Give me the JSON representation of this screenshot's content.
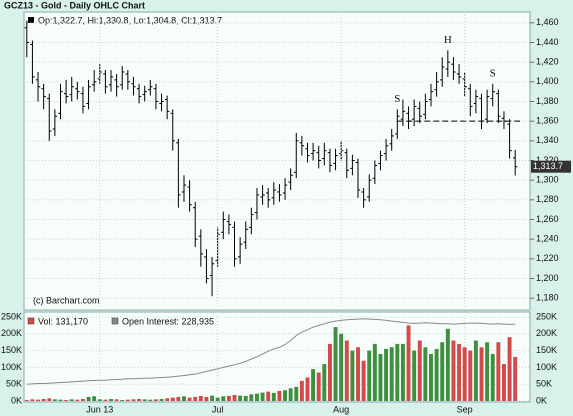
{
  "chart_data": [
    {
      "type": "ohlc",
      "title": "GCZ13 - Gold - Daily OHLC Chart",
      "subtitle": "Op:1,322.7, Hi:1,330.8, Lo:1,304.8, Cl:1,313.7",
      "credit": "(c) Barchart.com",
      "last_label": "1,313.7",
      "color": "#000000",
      "neckline": 1360,
      "annotations": [
        {
          "text": "S"
        },
        {
          "text": "H"
        },
        {
          "text": "S"
        }
      ],
      "open": [
        1455,
        1438,
        1402,
        1393,
        1383,
        1352,
        1368,
        1388,
        1387,
        1393,
        1388,
        1378,
        1397,
        1403,
        1408,
        1397,
        1402,
        1397,
        1408,
        1398,
        1393,
        1387,
        1392,
        1393,
        1378,
        1382,
        1368,
        1338,
        1288,
        1293,
        1272,
        1243,
        1222,
        1203,
        1218,
        1247,
        1258,
        1252,
        1222,
        1237,
        1252,
        1267,
        1283,
        1287,
        1282,
        1288,
        1287,
        1298,
        1308,
        1338,
        1332,
        1327,
        1328,
        1322,
        1328,
        1317,
        1327,
        1328,
        1312,
        1318,
        1288,
        1283,
        1302,
        1317,
        1327,
        1337,
        1347,
        1362,
        1368,
        1362,
        1373,
        1367,
        1382,
        1392,
        1402,
        1413,
        1418,
        1408,
        1403,
        1393,
        1378,
        1383,
        1362,
        1383,
        1388,
        1363,
        1357,
        1322.7
      ],
      "high": [
        1462,
        1442,
        1410,
        1398,
        1388,
        1372,
        1398,
        1402,
        1405,
        1400,
        1395,
        1402,
        1412,
        1418,
        1412,
        1412,
        1408,
        1416,
        1412,
        1405,
        1398,
        1396,
        1402,
        1398,
        1388,
        1386,
        1372,
        1342,
        1305,
        1300,
        1278,
        1250,
        1230,
        1222,
        1252,
        1268,
        1265,
        1258,
        1242,
        1258,
        1272,
        1292,
        1295,
        1292,
        1298,
        1296,
        1302,
        1312,
        1348,
        1345,
        1338,
        1338,
        1335,
        1338,
        1332,
        1332,
        1340,
        1332,
        1326,
        1322,
        1292,
        1306,
        1320,
        1330,
        1342,
        1352,
        1372,
        1382,
        1375,
        1382,
        1380,
        1388,
        1398,
        1410,
        1425,
        1432,
        1425,
        1418,
        1410,
        1398,
        1392,
        1388,
        1392,
        1398,
        1392,
        1370,
        1362,
        1330.8
      ],
      "low": [
        1425,
        1398,
        1380,
        1372,
        1340,
        1345,
        1362,
        1378,
        1380,
        1382,
        1368,
        1372,
        1390,
        1398,
        1388,
        1390,
        1385,
        1392,
        1392,
        1386,
        1378,
        1380,
        1386,
        1372,
        1370,
        1362,
        1330,
        1272,
        1278,
        1268,
        1232,
        1212,
        1195,
        1182,
        1212,
        1240,
        1245,
        1212,
        1215,
        1230,
        1245,
        1260,
        1275,
        1272,
        1275,
        1278,
        1280,
        1290,
        1302,
        1325,
        1318,
        1320,
        1312,
        1315,
        1308,
        1310,
        1320,
        1302,
        1305,
        1282,
        1272,
        1278,
        1296,
        1310,
        1320,
        1330,
        1342,
        1355,
        1352,
        1355,
        1358,
        1362,
        1375,
        1385,
        1395,
        1405,
        1402,
        1398,
        1385,
        1365,
        1368,
        1352,
        1358,
        1375,
        1358,
        1352,
        1322,
        1304.8
      ],
      "close": [
        1440,
        1405,
        1395,
        1385,
        1350,
        1365,
        1390,
        1385,
        1395,
        1390,
        1375,
        1395,
        1400,
        1410,
        1395,
        1405,
        1395,
        1410,
        1400,
        1395,
        1385,
        1390,
        1395,
        1380,
        1380,
        1370,
        1340,
        1285,
        1295,
        1275,
        1240,
        1225,
        1200,
        1215,
        1245,
        1260,
        1255,
        1220,
        1235,
        1250,
        1265,
        1285,
        1285,
        1280,
        1290,
        1285,
        1295,
        1305,
        1340,
        1335,
        1325,
        1330,
        1320,
        1330,
        1315,
        1325,
        1330,
        1310,
        1320,
        1290,
        1280,
        1300,
        1315,
        1325,
        1335,
        1345,
        1365,
        1370,
        1360,
        1375,
        1365,
        1380,
        1390,
        1400,
        1415,
        1420,
        1410,
        1405,
        1395,
        1375,
        1385,
        1360,
        1385,
        1390,
        1365,
        1360,
        1330,
        1313.7
      ],
      "ylim": [
        1170,
        1470
      ],
      "yticks": [
        {
          "value": 1180,
          "label": "1,180"
        },
        {
          "value": 1200,
          "label": "1,200"
        },
        {
          "value": 1220,
          "label": "1,220"
        },
        {
          "value": 1240,
          "label": "1,240"
        },
        {
          "value": 1260,
          "label": "1,260"
        },
        {
          "value": 1280,
          "label": "1,280"
        },
        {
          "value": 1300,
          "label": "1,300"
        },
        {
          "value": 1320,
          "label": "1,320"
        },
        {
          "value": 1340,
          "label": "1,340"
        },
        {
          "value": 1360,
          "label": "1,360"
        },
        {
          "value": 1380,
          "label": "1,380"
        },
        {
          "value": 1400,
          "label": "1,400"
        },
        {
          "value": 1420,
          "label": "1,420"
        },
        {
          "value": 1440,
          "label": "1,440"
        },
        {
          "value": 1460,
          "label": "1,460"
        }
      ],
      "grid": true
    },
    {
      "type": "volume",
      "categories": [
        null,
        null,
        null,
        null,
        null,
        null,
        null,
        null,
        null,
        null,
        null,
        null,
        null,
        "Jun 13",
        null,
        null,
        null,
        null,
        null,
        null,
        null,
        null,
        null,
        null,
        null,
        null,
        null,
        null,
        null,
        null,
        null,
        null,
        null,
        null,
        "Jul",
        null,
        null,
        null,
        null,
        null,
        null,
        null,
        null,
        null,
        null,
        null,
        null,
        null,
        null,
        null,
        null,
        null,
        null,
        null,
        null,
        null,
        "Aug",
        null,
        null,
        null,
        null,
        null,
        null,
        null,
        null,
        null,
        null,
        null,
        null,
        null,
        null,
        null,
        null,
        null,
        null,
        null,
        null,
        null,
        "Sep",
        null,
        null,
        null,
        null,
        null,
        null,
        null,
        null,
        null
      ],
      "up_color": "#3f8f3f",
      "down_color": "#d24a4a",
      "series": [
        {
          "name": "Vol: 131,170",
          "color": "#d24a4a",
          "values": [
            3000,
            5000,
            4000,
            6000,
            8000,
            5000,
            4000,
            3000,
            5000,
            4000,
            6000,
            12000,
            14000,
            5000,
            4000,
            6000,
            5000,
            3000,
            4000,
            5000,
            6000,
            5000,
            4000,
            5000,
            6000,
            8000,
            10000,
            12000,
            14000,
            10000,
            12000,
            15000,
            12000,
            16000,
            10000,
            14000,
            15000,
            18000,
            16000,
            15000,
            20000,
            22000,
            25000,
            28000,
            24000,
            30000,
            32000,
            38000,
            42000,
            60000,
            70000,
            95000,
            85000,
            110000,
            170000,
            220000,
            200000,
            180000,
            150000,
            160000,
            120000,
            150000,
            170000,
            140000,
            155000,
            160000,
            170000,
            170000,
            225000,
            150000,
            180000,
            160000,
            140000,
            155000,
            175000,
            215000,
            180000,
            170000,
            160000,
            150000,
            180000,
            160000,
            175000,
            140000,
            175000,
            110000,
            190000,
            131170
          ]
        },
        {
          "name": "Open Interest: 228,935",
          "color": "#8a8a8a",
          "values": [
            50000,
            51000,
            52000,
            52000,
            53000,
            54000,
            55000,
            56000,
            57000,
            58000,
            59000,
            60000,
            61000,
            62000,
            62000,
            63000,
            64000,
            65000,
            66000,
            66000,
            67000,
            68000,
            68000,
            69000,
            70000,
            71000,
            72000,
            74000,
            76000,
            78000,
            80000,
            84000,
            88000,
            92000,
            96000,
            100000,
            104000,
            108000,
            112000,
            118000,
            125000,
            132000,
            140000,
            148000,
            155000,
            160000,
            168000,
            180000,
            195000,
            205000,
            212000,
            220000,
            225000,
            230000,
            235000,
            238000,
            240000,
            242000,
            243000,
            244000,
            245000,
            244000,
            243000,
            242000,
            240000,
            238000,
            236000,
            234000,
            232000,
            231000,
            232000,
            233000,
            232000,
            231000,
            230000,
            230000,
            229000,
            230000,
            231000,
            232000,
            232000,
            231000,
            230000,
            229000,
            230000,
            229000,
            228000,
            228935
          ]
        }
      ],
      "ylim": [
        0,
        265000
      ],
      "yticks": [
        {
          "value": 0,
          "label": "0K"
        },
        {
          "value": 50000,
          "label": "50K"
        },
        {
          "value": 100000,
          "label": "100K"
        },
        {
          "value": 150000,
          "label": "150K"
        },
        {
          "value": 200000,
          "label": "200K"
        },
        {
          "value": 250000,
          "label": "250K"
        }
      ],
      "grid": true
    }
  ]
}
